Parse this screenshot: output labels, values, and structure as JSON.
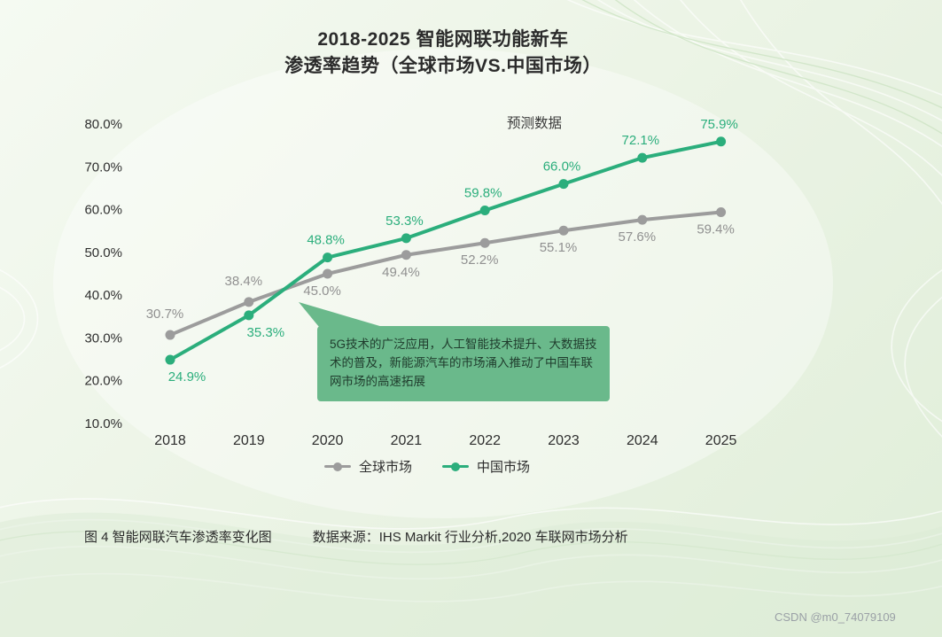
{
  "page": {
    "title_line1": "2018-2025 智能网联功能新车",
    "title_line2": "渗透率趋势（全球市场VS.中国市场）",
    "caption_figure": "图 4 智能网联汽车渗透率变化图",
    "caption_source": "数据来源：IHS Markit 行业分析,2020 车联网市场分析",
    "watermark": "CSDN @m0_74079109"
  },
  "callout": {
    "text": "5G技术的广泛应用，人工智能技术提升、大数据技术的普及，新能源汽车的市场涌入推动了中国车联网市场的高速拓展",
    "color": "#6ab98b"
  },
  "chart_data": {
    "type": "line",
    "title": "2018-2025 智能网联功能新车渗透率趋势（全球市场VS.中国市场）",
    "annotation": "预测数据",
    "categories": [
      "2018",
      "2019",
      "2020",
      "2021",
      "2022",
      "2023",
      "2024",
      "2025"
    ],
    "series": [
      {
        "name": "全球市场",
        "color": "#9c9c9c",
        "label_color": "#909090",
        "values": [
          30.7,
          38.4,
          45.0,
          49.4,
          52.2,
          55.1,
          57.6,
          59.4
        ],
        "labels": [
          "30.7%",
          "38.4%",
          "45.0%",
          "49.4%",
          "52.2%",
          "55.1%",
          "57.6%",
          "59.4%"
        ]
      },
      {
        "name": "中国市场",
        "color": "#2bae7c",
        "label_color": "#2bae7c",
        "values": [
          24.9,
          35.3,
          48.8,
          53.3,
          59.8,
          66.0,
          72.1,
          75.9
        ],
        "labels": [
          "24.9%",
          "35.3%",
          "48.8%",
          "53.3%",
          "59.8%",
          "66.0%",
          "72.1%",
          "75.9%"
        ]
      }
    ],
    "xlabel": "",
    "ylabel": "",
    "y_ticks": [
      "80.0%",
      "70.0%",
      "60.0%",
      "50.0%",
      "40.0%",
      "30.0%",
      "20.0%",
      "10.0%"
    ],
    "ylim": [
      10,
      80
    ],
    "grid": false,
    "legend_position": "bottom"
  }
}
